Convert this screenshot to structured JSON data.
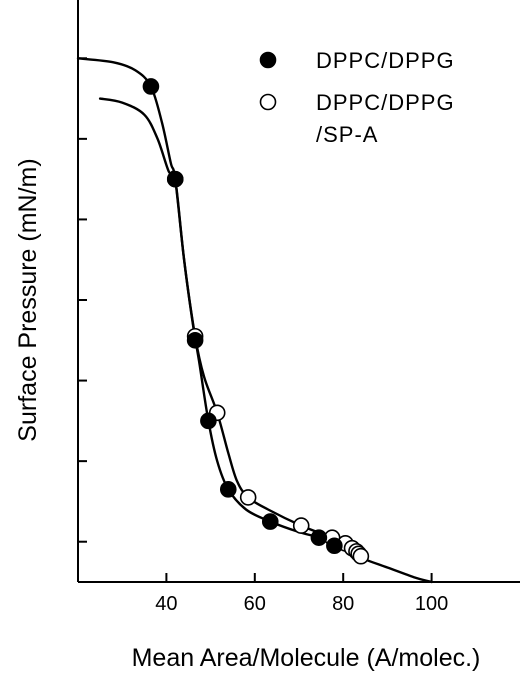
{
  "chart_data": {
    "type": "scatter",
    "title": "",
    "xlabel": "Mean Area/Molecule (A/molec.)",
    "ylabel": "Surface Pressure (mN/m)",
    "xlim": [
      20,
      120
    ],
    "ylim": [
      0,
      70
    ],
    "x_ticks": [
      40,
      60,
      80,
      100
    ],
    "x_tick_labels": [
      "40",
      "60",
      "80",
      "100"
    ],
    "y_ticks": [
      5,
      15,
      25,
      35,
      45,
      55,
      65
    ],
    "y_tick_labels_shown": false,
    "grid": false,
    "legend_position": "top-right",
    "legend": [
      {
        "label_lines": [
          "DPPC/DPPG"
        ],
        "marker": "filled-circle"
      },
      {
        "label_lines": [
          "DPPC/DPPG",
          "/SP-A"
        ],
        "marker": "open-circle"
      }
    ],
    "series": [
      {
        "name": "DPPC/DPPG",
        "marker": "filled-circle",
        "points": [
          [
            36.5,
            61.5
          ],
          [
            42,
            50
          ],
          [
            46.5,
            30
          ],
          [
            49.5,
            20
          ],
          [
            54,
            11.5
          ],
          [
            63.5,
            7.5
          ],
          [
            74.5,
            5.5
          ],
          [
            78,
            4.5
          ]
        ],
        "curve": [
          [
            20,
            65
          ],
          [
            28,
            64.5
          ],
          [
            33,
            63.5
          ],
          [
            36.5,
            61.5
          ],
          [
            39,
            57
          ],
          [
            41,
            52
          ],
          [
            42,
            50
          ],
          [
            44,
            40
          ],
          [
            46,
            32
          ],
          [
            47.5,
            27
          ],
          [
            49.5,
            20
          ],
          [
            51.5,
            15
          ],
          [
            54,
            11.5
          ],
          [
            58,
            9
          ],
          [
            63.5,
            7.5
          ],
          [
            70,
            6.2
          ],
          [
            74.5,
            5.5
          ],
          [
            78,
            4.5
          ],
          [
            84,
            3
          ],
          [
            90,
            1.8
          ],
          [
            96,
            0.6
          ],
          [
            100,
            0
          ]
        ]
      },
      {
        "name": "DPPC/DPPG /SP-A",
        "marker": "open-circle",
        "points": [
          [
            42,
            50
          ],
          [
            46.5,
            30.5
          ],
          [
            51.5,
            21
          ],
          [
            58.5,
            10.5
          ],
          [
            70.5,
            7
          ],
          [
            77.5,
            5.5
          ],
          [
            80.5,
            4.8
          ],
          [
            82,
            4.2
          ],
          [
            83,
            3.8
          ],
          [
            83.5,
            3.5
          ],
          [
            84,
            3.2
          ]
        ],
        "curve": [
          [
            25,
            60
          ],
          [
            30,
            59.5
          ],
          [
            35,
            58
          ],
          [
            38,
            55
          ],
          [
            40.5,
            51
          ],
          [
            42,
            50
          ],
          [
            44,
            40
          ],
          [
            46.5,
            30.5
          ],
          [
            48.5,
            25.5
          ],
          [
            51.5,
            21
          ],
          [
            54,
            16
          ],
          [
            56,
            12.5
          ],
          [
            58.5,
            10.5
          ],
          [
            63,
            9
          ],
          [
            70.5,
            7
          ],
          [
            77.5,
            5.5
          ],
          [
            80.5,
            4.8
          ],
          [
            82,
            4.2
          ],
          [
            84,
            3.2
          ]
        ]
      }
    ]
  }
}
